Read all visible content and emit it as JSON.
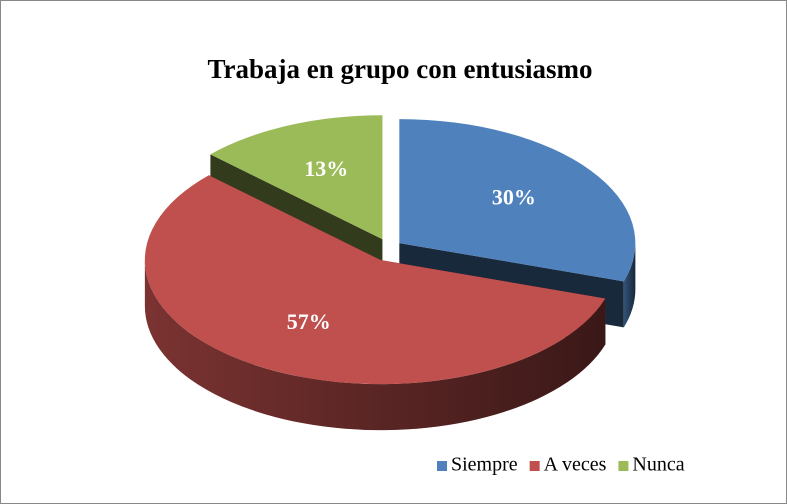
{
  "chart_data": {
    "type": "pie",
    "title": "Trabaja en grupo con entusiasmo",
    "categories": [
      "Siempre",
      "A veces",
      "Nunca"
    ],
    "values": [
      30,
      57,
      13
    ],
    "value_labels": [
      "30%",
      "57%",
      "13%"
    ],
    "colors": [
      "#4f81bd",
      "#c0504d",
      "#9bbb59"
    ],
    "legend": "bottom-right"
  }
}
